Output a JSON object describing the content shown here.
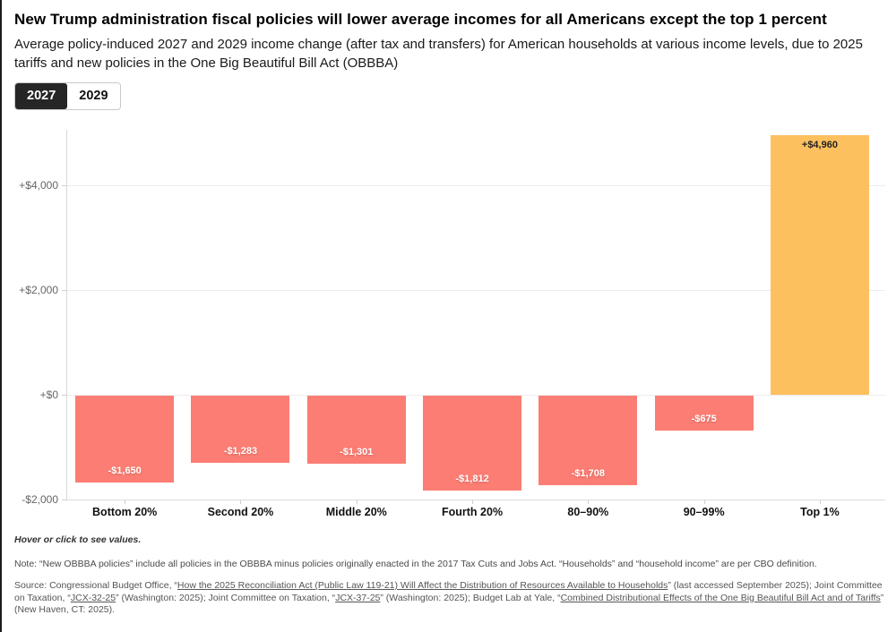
{
  "toggle": {
    "options": [
      {
        "label": "2027",
        "selected": true
      },
      {
        "label": "2029",
        "selected": false
      }
    ]
  },
  "chart_data": {
    "type": "bar",
    "title": "New Trump administration fiscal policies will lower average incomes for all Americans except the top 1 percent",
    "subtitle": "Average policy-induced 2027 and 2029 income change (after tax and transfers) for American households at various income levels, due to 2025 tariffs and new policies in the One Big Beautiful Bill Act (OBBBA)",
    "selected_series": "2027",
    "categories": [
      "Bottom 20%",
      "Second 20%",
      "Middle 20%",
      "Fourth 20%",
      "80–90%",
      "90–99%",
      "Top 1%"
    ],
    "series": [
      {
        "name": "2027",
        "values": [
          -1650,
          -1283,
          -1301,
          -1812,
          -1708,
          -675,
          4960
        ]
      }
    ],
    "value_labels": [
      "-$1,650",
      "-$1,283",
      "-$1,301",
      "-$1,812",
      "-$1,708",
      "-$675",
      "+$4,960"
    ],
    "xlabel": "",
    "ylabel": "",
    "y_ticks": [
      {
        "value": 4000,
        "label": "+$4,000"
      },
      {
        "value": 2000,
        "label": "+$2,000"
      },
      {
        "value": 0,
        "label": "+$0"
      },
      {
        "value": -2000,
        "label": "-$2,000"
      }
    ],
    "ylim": [
      -2000,
      5100
    ],
    "grid": true,
    "legend": "none",
    "colors": {
      "negative": "#FC7D73",
      "positive": "#FDC05F"
    }
  },
  "footer": {
    "hover_note": "Hover or click to see values.",
    "note": "Note: “New OBBBA policies” include all policies in the OBBBA minus policies originally enacted in the 2017 Tax Cuts and Jobs Act. “Households” and “household income” are per CBO definition.",
    "source_segments": [
      {
        "text": "Source: Congressional Budget Office, “"
      },
      {
        "link": "How the 2025 Reconciliation Act (Public Law 119-21) Will Affect the Distribution of Resources Available to Households"
      },
      {
        "text": "” (last accessed September 2025); Joint Committee on Taxation, “"
      },
      {
        "link": "JCX-32-25"
      },
      {
        "text": "” (Washington: 2025); Joint Committee on Taxation, “"
      },
      {
        "link": "JCX-37-25"
      },
      {
        "text": "” (Washington: 2025); Budget Lab at Yale, “"
      },
      {
        "link": "Combined Distributional Effects of the One Big Beautiful Bill Act and of Tariffs"
      },
      {
        "text": "” (New Haven, CT: 2025)."
      }
    ]
  }
}
